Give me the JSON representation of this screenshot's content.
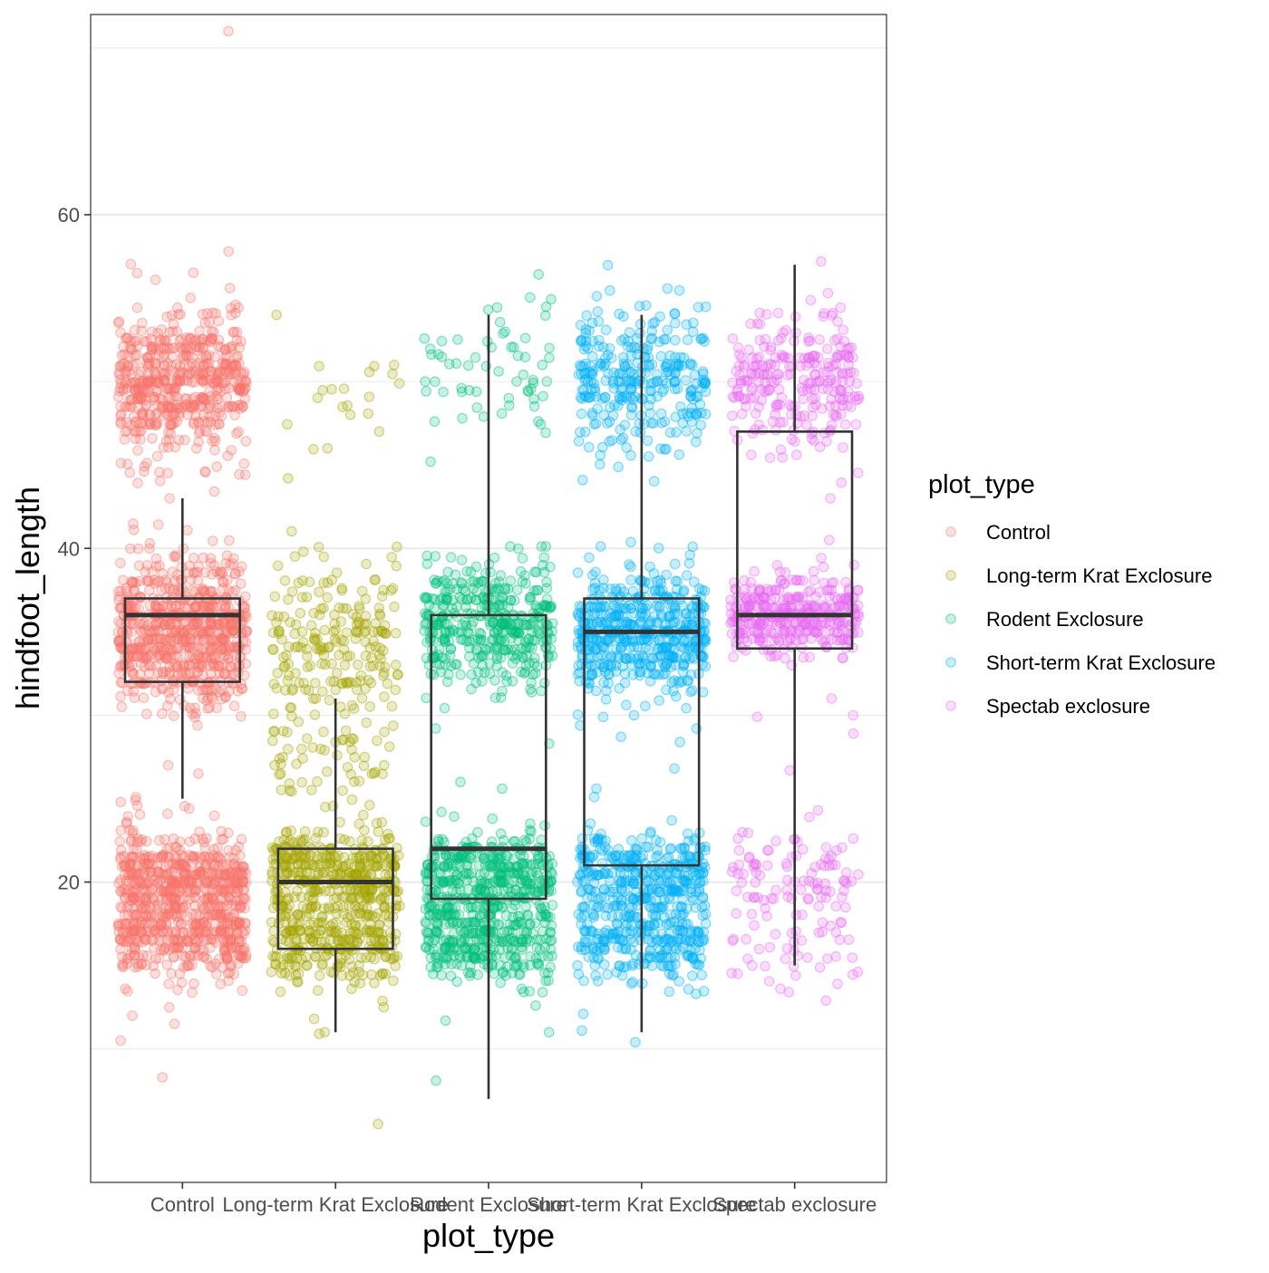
{
  "chart_data": {
    "type": "scatter",
    "overlay": "boxplot",
    "title": "",
    "xlabel": "plot_type",
    "ylabel": "hindfoot_length",
    "ylim": [
      2,
      72
    ],
    "y_ticks": [
      20,
      40,
      60
    ],
    "y_tick_labels": [
      "20",
      "40",
      "60"
    ],
    "grid": true,
    "legend": {
      "title": "plot_type",
      "position": "right"
    },
    "categories": [
      "Control",
      "Long-term Krat Exclosure",
      "Rodent Exclosure",
      "Short-term Krat Exclosure",
      "Spectab exclosure"
    ],
    "colors": [
      "#F8766D",
      "#A3A500",
      "#00BF7D",
      "#00B0F6",
      "#E76BF3"
    ],
    "boxplots": [
      {
        "category": "Control",
        "whisker_low": 25,
        "q1": 32,
        "median": 36,
        "q3": 37,
        "whisker_high": 43
      },
      {
        "category": "Long-term Krat Exclosure",
        "whisker_low": 11,
        "q1": 16,
        "median": 20,
        "q3": 22,
        "whisker_high": 31
      },
      {
        "category": "Rodent Exclosure",
        "whisker_low": 7,
        "q1": 19,
        "median": 22,
        "q3": 36,
        "whisker_high": 54
      },
      {
        "category": "Short-term Krat Exclosure",
        "whisker_low": 11,
        "q1": 21,
        "median": 35,
        "q3": 37,
        "whisker_high": 54
      },
      {
        "category": "Spectab exclosure",
        "whisker_low": 15,
        "q1": 34,
        "median": 36,
        "q3": 47,
        "whisker_high": 57
      }
    ],
    "series": [
      {
        "name": "Control",
        "clusters": [
          {
            "center": 50,
            "spread": 2.2,
            "n": 550
          },
          {
            "center": 35,
            "spread": 2.2,
            "n": 700
          },
          {
            "center": 20,
            "spread": 1.6,
            "n": 500
          },
          {
            "center": 16.5,
            "spread": 1.2,
            "n": 300
          }
        ],
        "outliers": [
          71,
          57.8,
          56.5,
          43,
          40.3,
          40,
          27,
          26.5,
          24.4,
          24.8,
          13.5,
          12,
          11.5,
          10.5,
          8.3
        ]
      },
      {
        "name": "Long-term Krat Exclosure",
        "clusters": [
          {
            "center": 50,
            "spread": 1.6,
            "n": 18
          },
          {
            "center": 34.5,
            "spread": 2.4,
            "n": 200
          },
          {
            "center": 28,
            "spread": 2,
            "n": 60
          },
          {
            "center": 20.5,
            "spread": 1.4,
            "n": 350
          },
          {
            "center": 16.5,
            "spread": 1.3,
            "n": 250
          }
        ],
        "outliers": [
          54,
          46,
          44.2,
          39.8,
          26.5,
          24.5,
          12.5,
          11.8,
          11,
          10.9,
          5.5
        ]
      },
      {
        "name": "Rodent Exclosure",
        "clusters": [
          {
            "center": 50.5,
            "spread": 2,
            "n": 60
          },
          {
            "center": 35.5,
            "spread": 1.8,
            "n": 400
          },
          {
            "center": 20.5,
            "spread": 1.2,
            "n": 350
          },
          {
            "center": 16.5,
            "spread": 1.2,
            "n": 300
          }
        ],
        "outliers": [
          54.3,
          47.8,
          45.2,
          39.3,
          29.2,
          28.3,
          26,
          25.6,
          24.2,
          23.8,
          12.6,
          11.7,
          11,
          8.1
        ]
      },
      {
        "name": "Short-term Krat Exclosure",
        "clusters": [
          {
            "center": 50,
            "spread": 2.2,
            "n": 300
          },
          {
            "center": 35,
            "spread": 1.8,
            "n": 500
          },
          {
            "center": 20.5,
            "spread": 1.2,
            "n": 300
          },
          {
            "center": 16.5,
            "spread": 1.3,
            "n": 250
          }
        ],
        "outliers": [
          54.2,
          44.1,
          40.1,
          30,
          29.2,
          28.7,
          28.4,
          26.8,
          25.6,
          25.1,
          23.7,
          13.3,
          12.1,
          11.1,
          10.4
        ]
      },
      {
        "name": "Spectab exclosure",
        "clusters": [
          {
            "center": 50,
            "spread": 2,
            "n": 250
          },
          {
            "center": 36,
            "spread": 1.2,
            "n": 350
          },
          {
            "center": 20.5,
            "spread": 1.2,
            "n": 80
          },
          {
            "center": 16.5,
            "spread": 1.2,
            "n": 50
          }
        ],
        "outliers": [
          57.2,
          55.3,
          43,
          40.5,
          31,
          30,
          29.9,
          28.9,
          26.7,
          24.3,
          23.9,
          13.9,
          13.4,
          12.9
        ]
      }
    ]
  }
}
